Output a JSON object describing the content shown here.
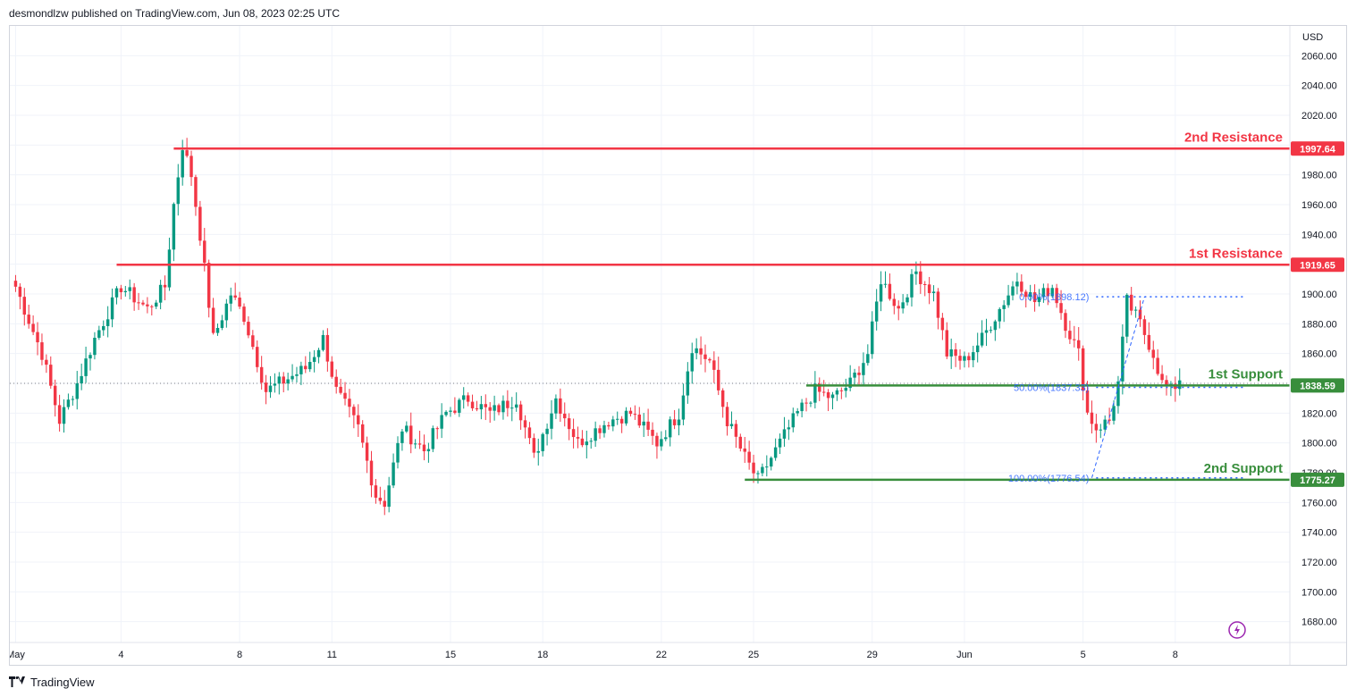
{
  "header": {
    "attribution": "desmondlzw published on TradingView.com, Jun 08, 2023 02:25 UTC"
  },
  "footer": {
    "brand": "TradingView",
    "logo_icon": "tradingview-logo-icon"
  },
  "colors": {
    "up": "#089981",
    "down": "#f23645",
    "resistance": "#f23645",
    "support": "#388e3c",
    "fib": "#2962ff",
    "axis_text": "#131722",
    "grid": "#f0f3fa"
  },
  "chart_data": {
    "type": "candlestick",
    "currency": "USD",
    "y_axis": {
      "range": [
        1666,
        2080
      ],
      "ticks": [
        "1680.00",
        "1700.00",
        "1720.00",
        "1740.00",
        "1760.00",
        "1780.00",
        "1800.00",
        "1820.00",
        "1840.00",
        "1860.00",
        "1880.00",
        "1900.00",
        "1920.00",
        "1940.00",
        "1960.00",
        "1980.00",
        "2000.00",
        "2020.00",
        "2040.00",
        "2060.00"
      ]
    },
    "x_axis": {
      "labels": [
        {
          "text": "May",
          "bar": 0
        },
        {
          "text": "4",
          "bar": 24
        },
        {
          "text": "8",
          "bar": 51
        },
        {
          "text": "11",
          "bar": 72
        },
        {
          "text": "15",
          "bar": 99
        },
        {
          "text": "18",
          "bar": 120
        },
        {
          "text": "22",
          "bar": 147
        },
        {
          "text": "25",
          "bar": 168
        },
        {
          "text": "29",
          "bar": 195
        },
        {
          "text": "Jun",
          "bar": 216
        },
        {
          "text": "5",
          "bar": 243
        },
        {
          "text": "8",
          "bar": 264
        }
      ],
      "total_bars": 280
    },
    "levels": [
      {
        "name": "2nd Resistance",
        "value": 1997.64,
        "label": "1997.64",
        "kind": "resistance",
        "from_bar": 36
      },
      {
        "name": "1st Resistance",
        "value": 1919.65,
        "label": "1919.65",
        "kind": "resistance",
        "from_bar": 23
      },
      {
        "name": "1st Support",
        "value": 1838.59,
        "label": "1838.59",
        "kind": "support",
        "from_bar": 180
      },
      {
        "name": "2nd Support",
        "value": 1775.27,
        "label": "1775.27",
        "kind": "support",
        "from_bar": 166
      }
    ],
    "fibonacci": [
      {
        "label": "0.00%(1898.12)",
        "value": 1898.12
      },
      {
        "label": "50.00%(1837.33)",
        "value": 1837.33
      },
      {
        "label": "100.00%(1776.54)",
        "value": 1776.54
      }
    ],
    "current_price_line": 1840,
    "key_points": [
      {
        "bar": 0,
        "close": 1905
      },
      {
        "bar": 6,
        "close": 1860
      },
      {
        "bar": 10,
        "close": 1815
      },
      {
        "bar": 14,
        "close": 1840
      },
      {
        "bar": 18,
        "close": 1870
      },
      {
        "bar": 24,
        "close": 1905
      },
      {
        "bar": 30,
        "close": 1890
      },
      {
        "bar": 34,
        "close": 1905
      },
      {
        "bar": 36,
        "close": 1960
      },
      {
        "bar": 38,
        "close": 2000
      },
      {
        "bar": 40,
        "close": 1980
      },
      {
        "bar": 42,
        "close": 1940
      },
      {
        "bar": 45,
        "close": 1870
      },
      {
        "bar": 49,
        "close": 1900
      },
      {
        "bar": 52,
        "close": 1885
      },
      {
        "bar": 57,
        "close": 1835
      },
      {
        "bar": 60,
        "close": 1840
      },
      {
        "bar": 66,
        "close": 1850
      },
      {
        "bar": 70,
        "close": 1870
      },
      {
        "bar": 73,
        "close": 1835
      },
      {
        "bar": 78,
        "close": 1810
      },
      {
        "bar": 82,
        "close": 1765
      },
      {
        "bar": 84,
        "close": 1760
      },
      {
        "bar": 88,
        "close": 1810
      },
      {
        "bar": 93,
        "close": 1795
      },
      {
        "bar": 98,
        "close": 1820
      },
      {
        "bar": 103,
        "close": 1830
      },
      {
        "bar": 108,
        "close": 1820
      },
      {
        "bar": 114,
        "close": 1830
      },
      {
        "bar": 118,
        "close": 1790
      },
      {
        "bar": 123,
        "close": 1830
      },
      {
        "bar": 128,
        "close": 1800
      },
      {
        "bar": 135,
        "close": 1815
      },
      {
        "bar": 140,
        "close": 1820
      },
      {
        "bar": 146,
        "close": 1800
      },
      {
        "bar": 151,
        "close": 1820
      },
      {
        "bar": 154,
        "close": 1865
      },
      {
        "bar": 158,
        "close": 1855
      },
      {
        "bar": 162,
        "close": 1815
      },
      {
        "bar": 166,
        "close": 1790
      },
      {
        "bar": 169,
        "close": 1775
      },
      {
        "bar": 173,
        "close": 1795
      },
      {
        "bar": 178,
        "close": 1820
      },
      {
        "bar": 182,
        "close": 1835
      },
      {
        "bar": 186,
        "close": 1830
      },
      {
        "bar": 190,
        "close": 1840
      },
      {
        "bar": 194,
        "close": 1860
      },
      {
        "bar": 197,
        "close": 1910
      },
      {
        "bar": 201,
        "close": 1890
      },
      {
        "bar": 205,
        "close": 1915
      },
      {
        "bar": 209,
        "close": 1900
      },
      {
        "bar": 212,
        "close": 1860
      },
      {
        "bar": 216,
        "close": 1855
      },
      {
        "bar": 220,
        "close": 1870
      },
      {
        "bar": 224,
        "close": 1890
      },
      {
        "bar": 228,
        "close": 1910
      },
      {
        "bar": 232,
        "close": 1895
      },
      {
        "bar": 236,
        "close": 1905
      },
      {
        "bar": 239,
        "close": 1880
      },
      {
        "bar": 242,
        "close": 1860
      },
      {
        "bar": 244,
        "close": 1820
      },
      {
        "bar": 246,
        "close": 1810
      },
      {
        "bar": 249,
        "close": 1815
      },
      {
        "bar": 251,
        "close": 1840
      },
      {
        "bar": 253,
        "close": 1895
      },
      {
        "bar": 256,
        "close": 1880
      },
      {
        "bar": 259,
        "close": 1860
      },
      {
        "bar": 261,
        "close": 1840
      },
      {
        "bar": 263,
        "close": 1835
      },
      {
        "bar": 265,
        "close": 1842
      }
    ]
  }
}
